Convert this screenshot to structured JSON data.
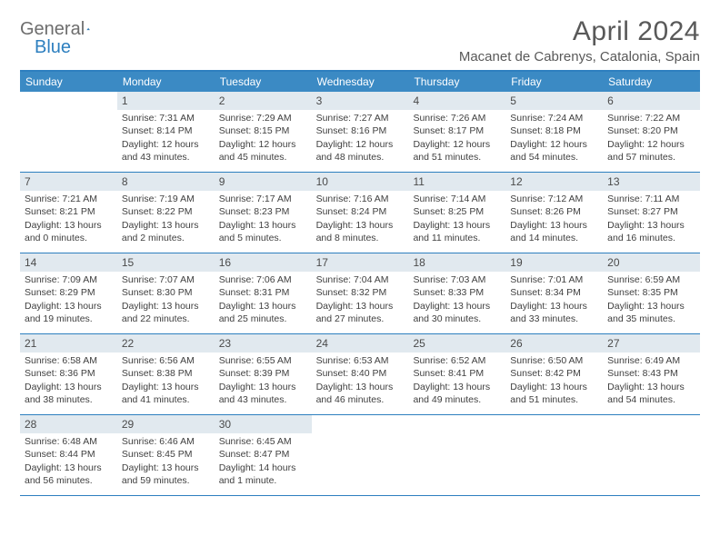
{
  "logo": {
    "text1": "General",
    "text2": "Blue"
  },
  "title": "April 2024",
  "location": "Macanet de Cabrenys, Catalonia, Spain",
  "dayNames": [
    "Sunday",
    "Monday",
    "Tuesday",
    "Wednesday",
    "Thursday",
    "Friday",
    "Saturday"
  ],
  "colors": {
    "headerBg": "#3b8ac4",
    "borderBlue": "#2d7fbf",
    "dayNumBg": "#e1e9ef",
    "text": "#3f3f3f"
  },
  "weeks": [
    [
      {
        "n": "",
        "sr": "",
        "ss": "",
        "dl": ""
      },
      {
        "n": "1",
        "sr": "7:31 AM",
        "ss": "8:14 PM",
        "dl": "12 hours and 43 minutes."
      },
      {
        "n": "2",
        "sr": "7:29 AM",
        "ss": "8:15 PM",
        "dl": "12 hours and 45 minutes."
      },
      {
        "n": "3",
        "sr": "7:27 AM",
        "ss": "8:16 PM",
        "dl": "12 hours and 48 minutes."
      },
      {
        "n": "4",
        "sr": "7:26 AM",
        "ss": "8:17 PM",
        "dl": "12 hours and 51 minutes."
      },
      {
        "n": "5",
        "sr": "7:24 AM",
        "ss": "8:18 PM",
        "dl": "12 hours and 54 minutes."
      },
      {
        "n": "6",
        "sr": "7:22 AM",
        "ss": "8:20 PM",
        "dl": "12 hours and 57 minutes."
      }
    ],
    [
      {
        "n": "7",
        "sr": "7:21 AM",
        "ss": "8:21 PM",
        "dl": "13 hours and 0 minutes."
      },
      {
        "n": "8",
        "sr": "7:19 AM",
        "ss": "8:22 PM",
        "dl": "13 hours and 2 minutes."
      },
      {
        "n": "9",
        "sr": "7:17 AM",
        "ss": "8:23 PM",
        "dl": "13 hours and 5 minutes."
      },
      {
        "n": "10",
        "sr": "7:16 AM",
        "ss": "8:24 PM",
        "dl": "13 hours and 8 minutes."
      },
      {
        "n": "11",
        "sr": "7:14 AM",
        "ss": "8:25 PM",
        "dl": "13 hours and 11 minutes."
      },
      {
        "n": "12",
        "sr": "7:12 AM",
        "ss": "8:26 PM",
        "dl": "13 hours and 14 minutes."
      },
      {
        "n": "13",
        "sr": "7:11 AM",
        "ss": "8:27 PM",
        "dl": "13 hours and 16 minutes."
      }
    ],
    [
      {
        "n": "14",
        "sr": "7:09 AM",
        "ss": "8:29 PM",
        "dl": "13 hours and 19 minutes."
      },
      {
        "n": "15",
        "sr": "7:07 AM",
        "ss": "8:30 PM",
        "dl": "13 hours and 22 minutes."
      },
      {
        "n": "16",
        "sr": "7:06 AM",
        "ss": "8:31 PM",
        "dl": "13 hours and 25 minutes."
      },
      {
        "n": "17",
        "sr": "7:04 AM",
        "ss": "8:32 PM",
        "dl": "13 hours and 27 minutes."
      },
      {
        "n": "18",
        "sr": "7:03 AM",
        "ss": "8:33 PM",
        "dl": "13 hours and 30 minutes."
      },
      {
        "n": "19",
        "sr": "7:01 AM",
        "ss": "8:34 PM",
        "dl": "13 hours and 33 minutes."
      },
      {
        "n": "20",
        "sr": "6:59 AM",
        "ss": "8:35 PM",
        "dl": "13 hours and 35 minutes."
      }
    ],
    [
      {
        "n": "21",
        "sr": "6:58 AM",
        "ss": "8:36 PM",
        "dl": "13 hours and 38 minutes."
      },
      {
        "n": "22",
        "sr": "6:56 AM",
        "ss": "8:38 PM",
        "dl": "13 hours and 41 minutes."
      },
      {
        "n": "23",
        "sr": "6:55 AM",
        "ss": "8:39 PM",
        "dl": "13 hours and 43 minutes."
      },
      {
        "n": "24",
        "sr": "6:53 AM",
        "ss": "8:40 PM",
        "dl": "13 hours and 46 minutes."
      },
      {
        "n": "25",
        "sr": "6:52 AM",
        "ss": "8:41 PM",
        "dl": "13 hours and 49 minutes."
      },
      {
        "n": "26",
        "sr": "6:50 AM",
        "ss": "8:42 PM",
        "dl": "13 hours and 51 minutes."
      },
      {
        "n": "27",
        "sr": "6:49 AM",
        "ss": "8:43 PM",
        "dl": "13 hours and 54 minutes."
      }
    ],
    [
      {
        "n": "28",
        "sr": "6:48 AM",
        "ss": "8:44 PM",
        "dl": "13 hours and 56 minutes."
      },
      {
        "n": "29",
        "sr": "6:46 AM",
        "ss": "8:45 PM",
        "dl": "13 hours and 59 minutes."
      },
      {
        "n": "30",
        "sr": "6:45 AM",
        "ss": "8:47 PM",
        "dl": "14 hours and 1 minute."
      },
      {
        "n": "",
        "sr": "",
        "ss": "",
        "dl": ""
      },
      {
        "n": "",
        "sr": "",
        "ss": "",
        "dl": ""
      },
      {
        "n": "",
        "sr": "",
        "ss": "",
        "dl": ""
      },
      {
        "n": "",
        "sr": "",
        "ss": "",
        "dl": ""
      }
    ]
  ],
  "labels": {
    "sunrise": "Sunrise:",
    "sunset": "Sunset:",
    "daylight": "Daylight:"
  }
}
